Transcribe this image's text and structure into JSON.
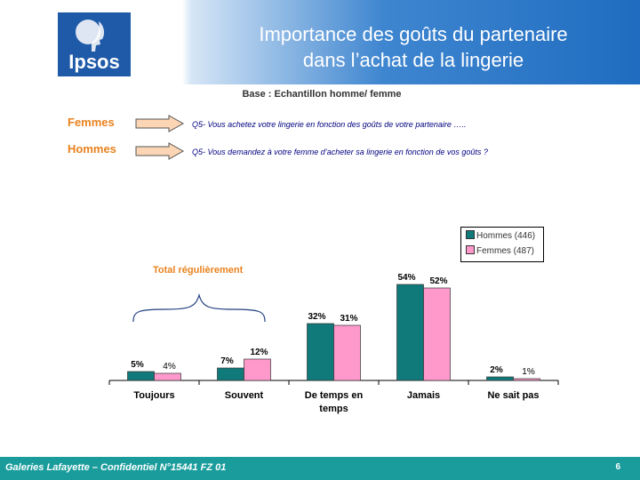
{
  "header": {
    "logo": "Ipsos",
    "title_line1": "Importance des goûts du partenaire",
    "title_line2": "dans l’achat de la lingerie"
  },
  "base": "Base : Echantillon homme/ femme",
  "respondents": [
    {
      "label": "Femmes",
      "question": "Q5- Vous achetez votre lingerie en fonction des goûts de votre partenaire ….."
    },
    {
      "label": "Hommes",
      "question": "Q5- Vous demandez à votre femme d’acheter sa lingerie en fonction de vos goûts ?"
    }
  ],
  "annotation": "Total régulièrement",
  "chart_data": {
    "type": "bar",
    "categories": [
      "Toujours",
      "Souvent",
      "De temps en temps",
      "Jamais",
      "Ne sait pas"
    ],
    "category_lines": [
      [
        "Toujours"
      ],
      [
        "Souvent"
      ],
      [
        "De temps en",
        "temps"
      ],
      [
        "Jamais"
      ],
      [
        "Ne sait pas"
      ]
    ],
    "series": [
      {
        "name": "Hommes (446)",
        "values": [
          5,
          7,
          32,
          54,
          2
        ],
        "labels": [
          "5%",
          "7%",
          "32%",
          "54%",
          "2%"
        ],
        "color": "#107a7a"
      },
      {
        "name": "Femmes (487)",
        "values": [
          4,
          12,
          31,
          52,
          1
        ],
        "labels": [
          "4%",
          "12%",
          "31%",
          "52%",
          "1%"
        ],
        "color": "#ff99cc"
      }
    ],
    "ylim": [
      0,
      60
    ],
    "grid": false,
    "legend_position": "top-right"
  },
  "footer": {
    "left": "Galeries Lafayette – Confidentiel N°15441 FZ 01",
    "page": "6"
  },
  "colors": {
    "accent": "#e8821e",
    "footer": "#1a9c9c",
    "header_blue": "#1f6cc0",
    "logo": "#1f5aa8"
  }
}
